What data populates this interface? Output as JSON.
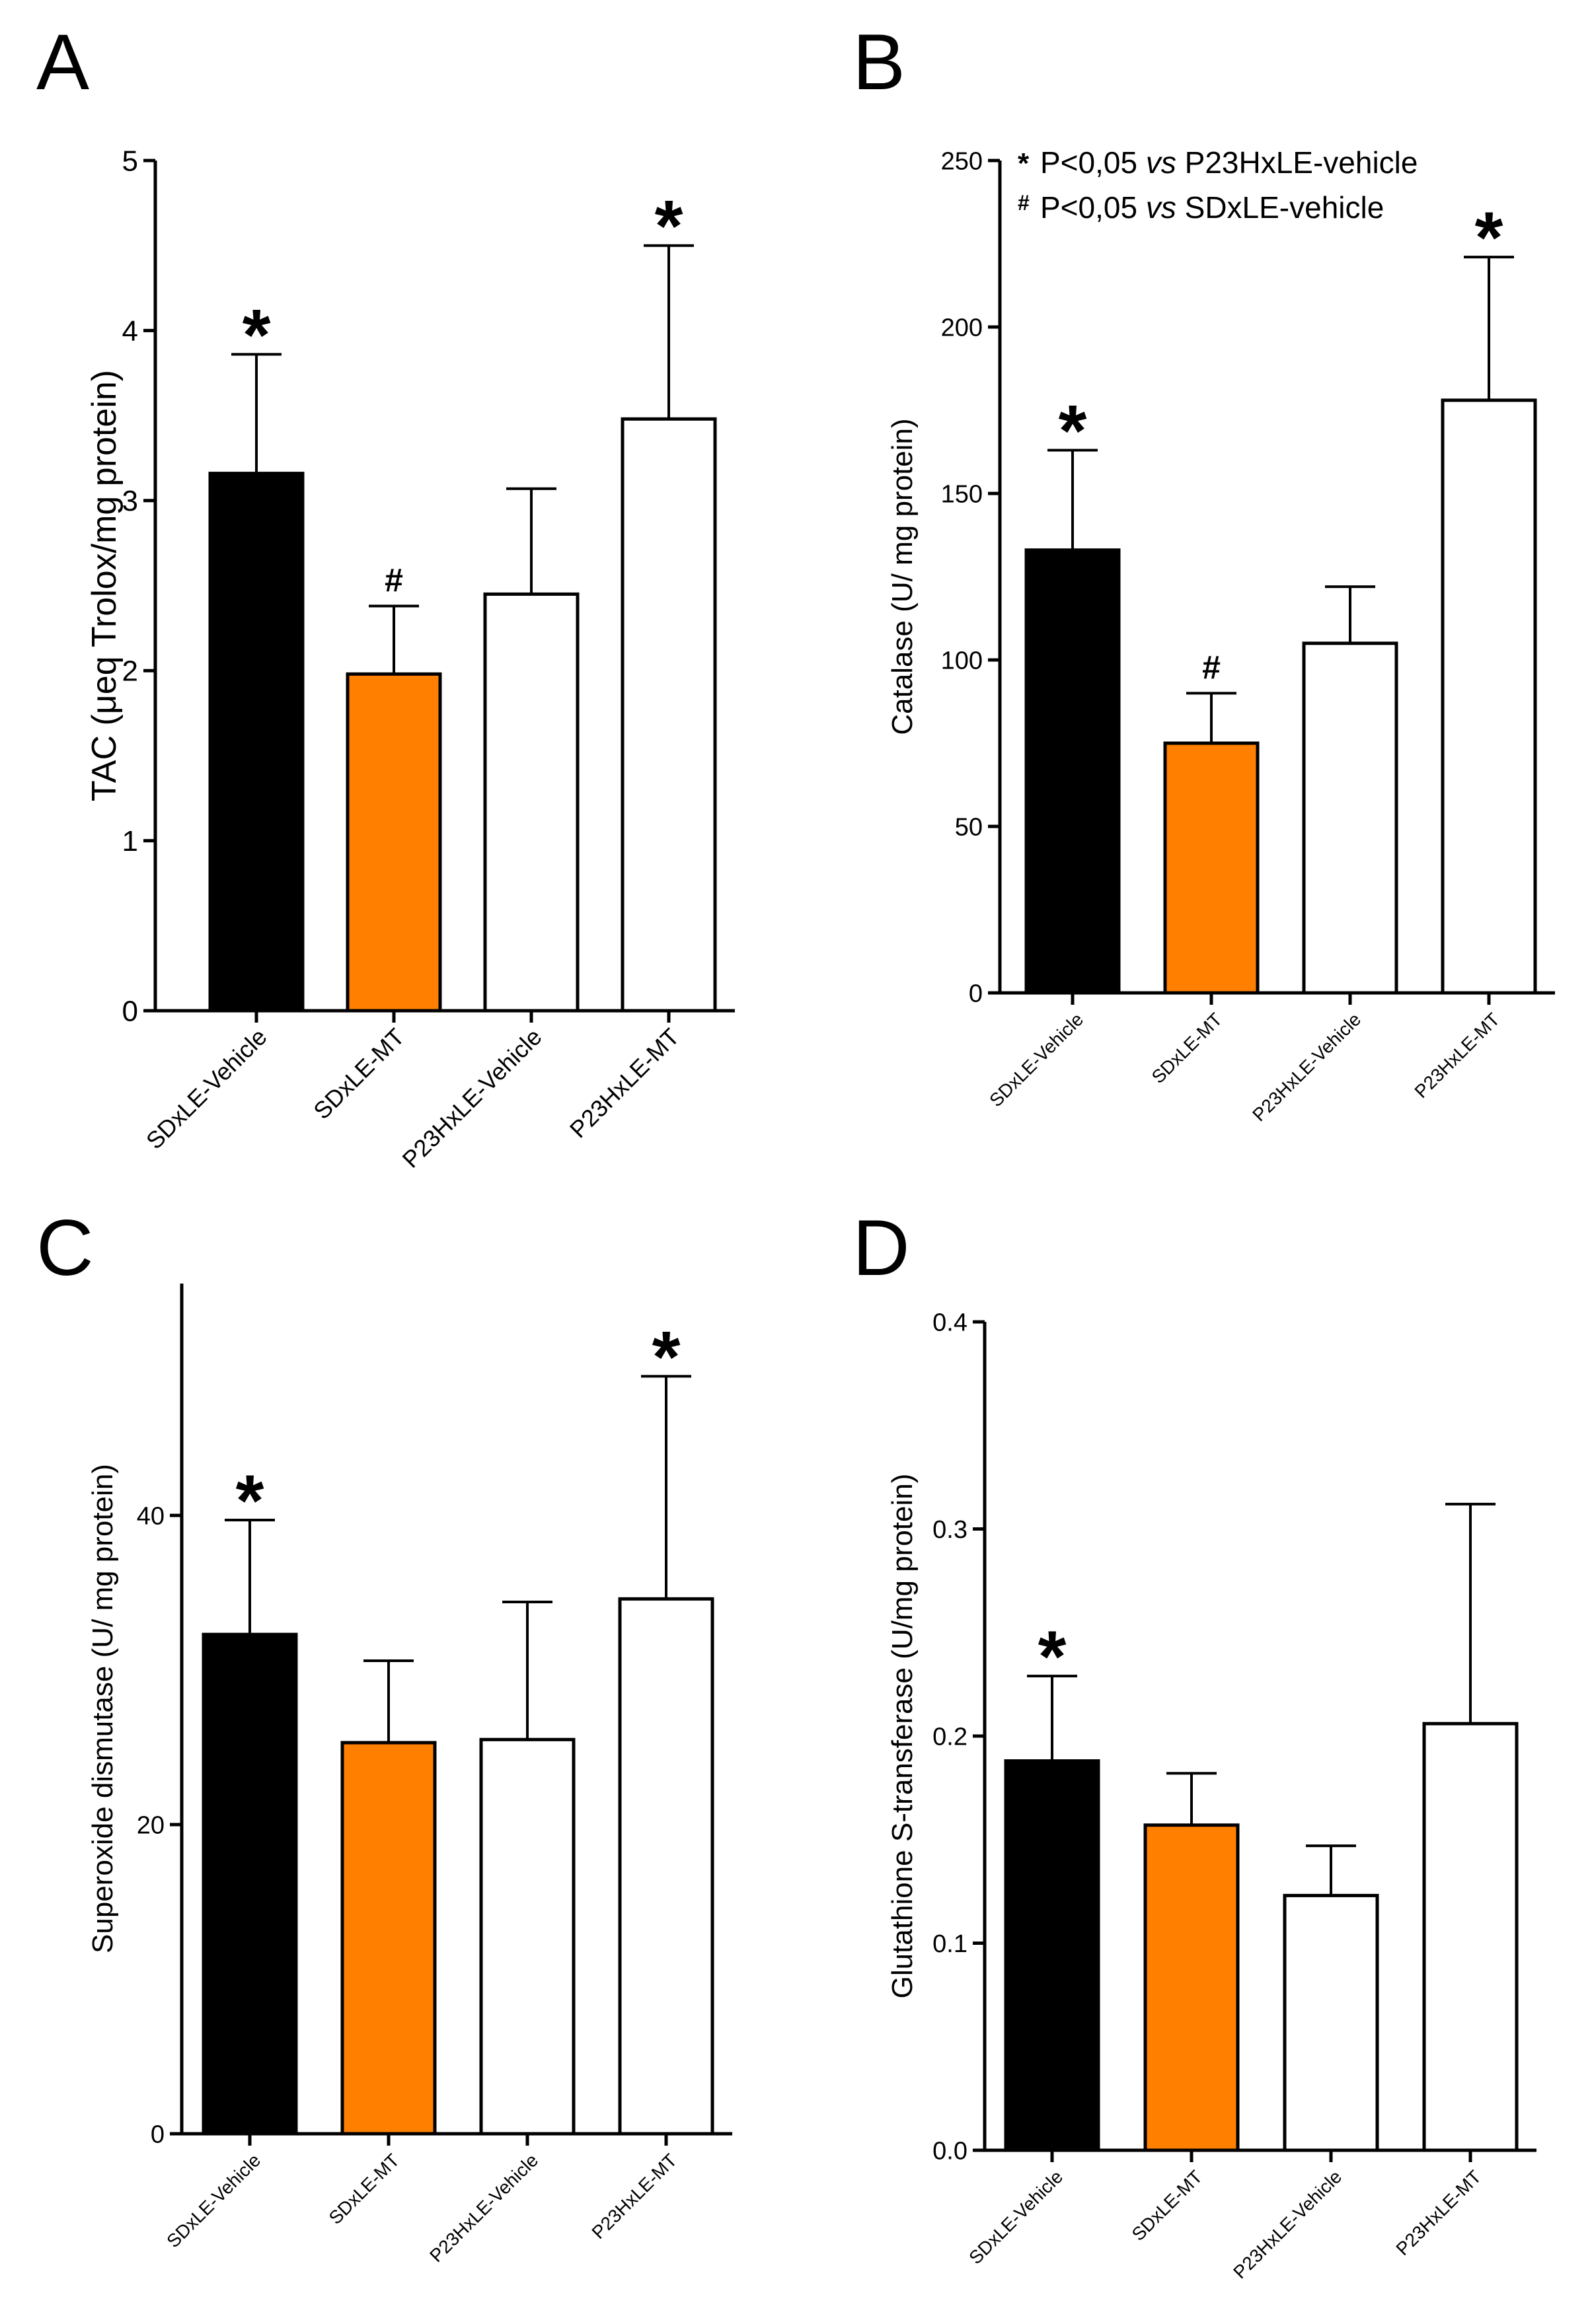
{
  "chart_data": [
    {
      "panel": "A",
      "type": "bar",
      "categories": [
        "SDxLE-Vehicle",
        "SDxLE-MT",
        "P23HxLE-Vehicle",
        "P23HxLE-MT"
      ],
      "values": [
        3.16,
        1.98,
        2.45,
        3.48
      ],
      "errors": [
        0.7,
        0.4,
        0.62,
        1.02
      ],
      "annotations": [
        "*",
        "#",
        "",
        "*"
      ],
      "ylabel": "TAC (μeq Trolox/mg protein)",
      "ylim": [
        0,
        5
      ],
      "yticks": [
        0,
        1,
        2,
        3,
        4,
        5
      ],
      "ytick_labels": [
        "0",
        "1",
        "2",
        "3",
        "4",
        "5"
      ],
      "bar_colors": [
        "#000000",
        "#ff8000",
        "#ffffff",
        "#ffffff"
      ],
      "grid": false
    },
    {
      "panel": "B",
      "type": "bar",
      "categories": [
        "SDxLE-Vehicle",
        "SDxLE-MT",
        "P23HxLE-Vehicle",
        "P23HxLE-MT"
      ],
      "values": [
        133,
        75,
        105,
        178
      ],
      "errors": [
        30,
        15,
        17,
        43
      ],
      "annotations": [
        "*",
        "#",
        "",
        "*"
      ],
      "ylabel": "Catalase (U/ mg protein)",
      "ylim": [
        0,
        250
      ],
      "yticks": [
        0,
        50,
        100,
        150,
        200,
        250
      ],
      "ytick_labels": [
        "0",
        "50",
        "100",
        "150",
        "200",
        "250"
      ],
      "bar_colors": [
        "#000000",
        "#ff8000",
        "#ffffff",
        "#ffffff"
      ],
      "grid": false,
      "legend": {
        "placement": "top",
        "lines": [
          {
            "marker": "*",
            "prefix": "P<0,05 ",
            "italic": "vs",
            "suffix": " P23HxLE-vehicle"
          },
          {
            "marker": "#",
            "prefix": "P<0,05 ",
            "italic": "vs",
            "suffix": " SDxLE-vehicle"
          }
        ]
      }
    },
    {
      "panel": "C",
      "type": "bar",
      "categories": [
        "SDxLE-Vehicle",
        "SDxLE-MT",
        "P23HxLE-Vehicle",
        "P23HxLE-MT"
      ],
      "values": [
        32.3,
        25.3,
        25.5,
        34.6
      ],
      "errors": [
        7.4,
        5.3,
        8.9,
        14.4
      ],
      "annotations": [
        "*",
        "",
        "",
        "*"
      ],
      "ylabel": "Superoxide dismutase (U/ mg protein)",
      "ylim": [
        0,
        55
      ],
      "yticks": [
        0,
        20,
        40
      ],
      "ytick_labels": [
        "0",
        "20",
        "40"
      ],
      "bar_colors": [
        "#000000",
        "#ff8000",
        "#ffffff",
        "#ffffff"
      ],
      "grid": false
    },
    {
      "panel": "D",
      "type": "bar",
      "categories": [
        "SDxLE-Vehicle",
        "SDxLE-MT",
        "P23HxLE-Vehicle",
        "P23HxLE-MT"
      ],
      "values": [
        0.188,
        0.157,
        0.123,
        0.206
      ],
      "errors": [
        0.041,
        0.025,
        0.024,
        0.106
      ],
      "annotations": [
        "*",
        "",
        "",
        ""
      ],
      "ylabel": "Glutathione S-transferase (U/mg protein)",
      "ylim": [
        0,
        0.4
      ],
      "yticks": [
        0,
        0.1,
        0.2,
        0.3,
        0.4
      ],
      "ytick_labels": [
        "0.0",
        "0.1",
        "0.2",
        "0.3",
        "0.4"
      ],
      "bar_colors": [
        "#000000",
        "#ff8000",
        "#ffffff",
        "#ffffff"
      ],
      "grid": false
    }
  ]
}
